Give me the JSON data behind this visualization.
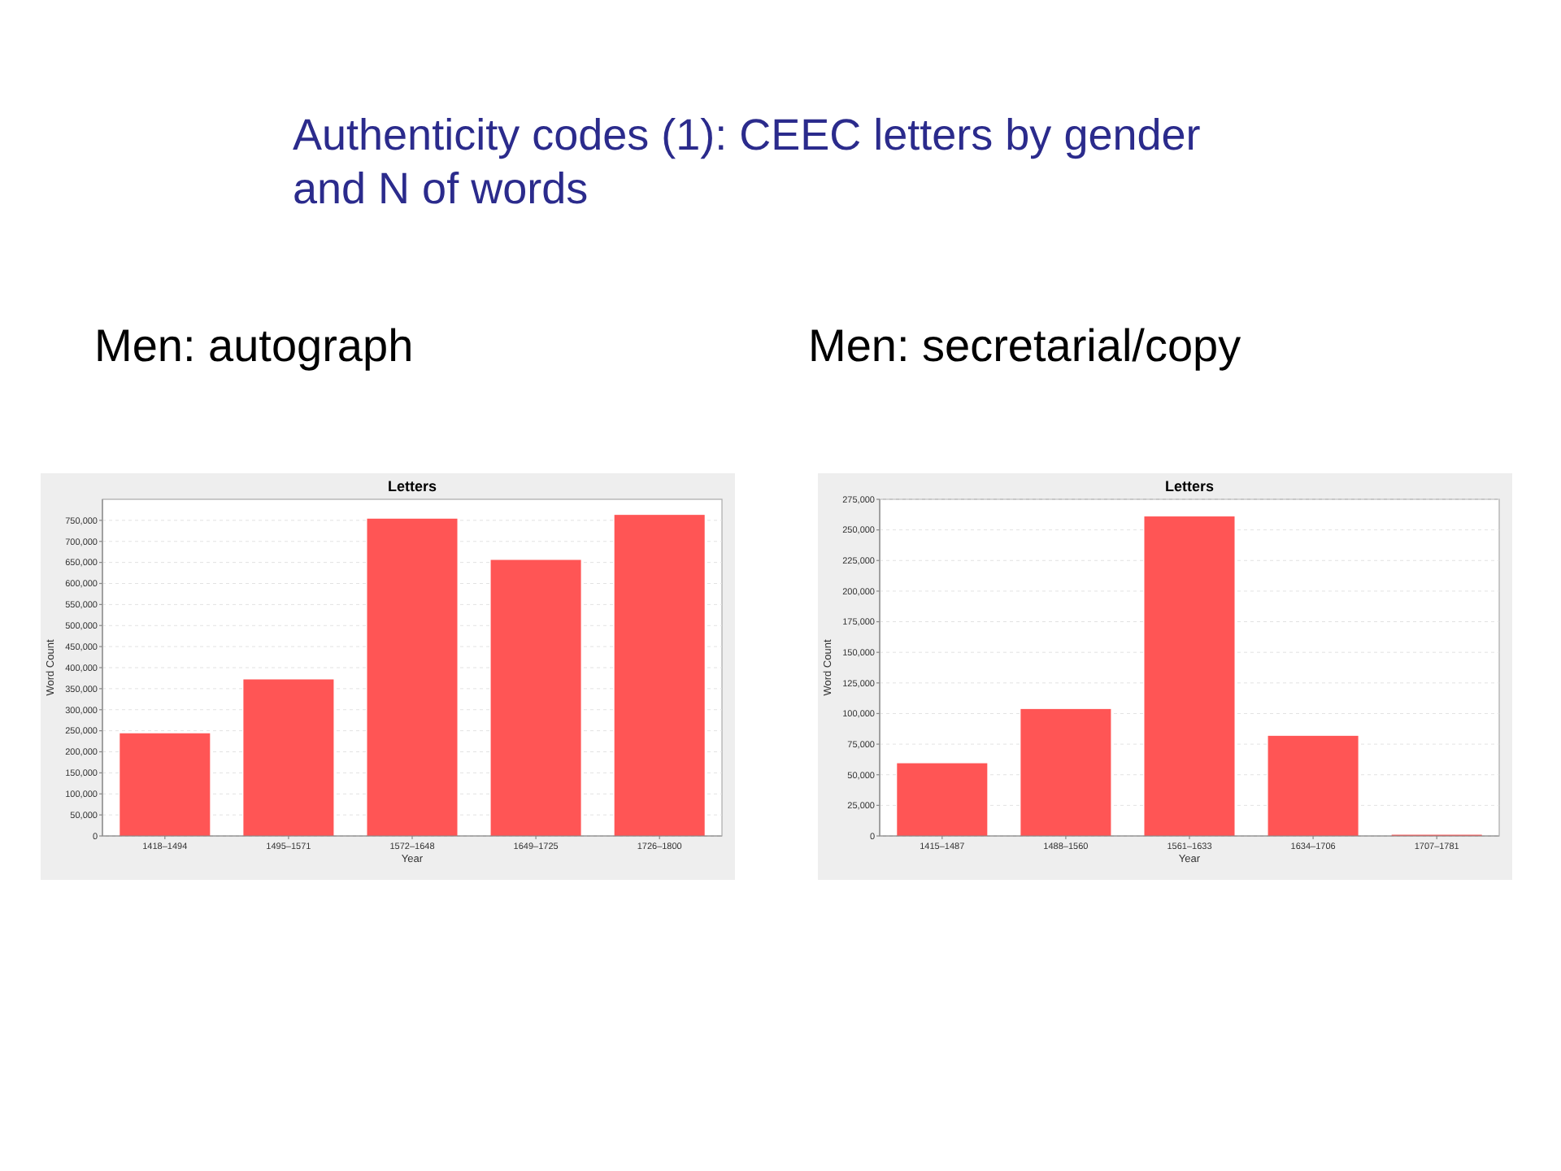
{
  "chart_data": [
    {
      "type": "other",
      "title": "Authenticity codes (1): CEEC letters by gender and N of words"
    },
    {
      "type": "bar",
      "subtitle": "Men: autograph",
      "title": "Letters",
      "xlabel": "Year",
      "ylabel": "Word Count",
      "categories": [
        "1418–1494",
        "1495–1571",
        "1572–1648",
        "1649–1725",
        "1726–1800"
      ],
      "values": [
        244000,
        372000,
        754000,
        656000,
        763000
      ],
      "color": "#ff5555",
      "ylim": [
        0,
        800000
      ],
      "yticks": [
        {
          "value": 0,
          "label": "0"
        },
        {
          "value": 50000,
          "label": "50,000"
        },
        {
          "value": 100000,
          "label": "100,000"
        },
        {
          "value": 150000,
          "label": "150,000"
        },
        {
          "value": 200000,
          "label": "200,000"
        },
        {
          "value": 250000,
          "label": "250,000"
        },
        {
          "value": 300000,
          "label": "300,000"
        },
        {
          "value": 350000,
          "label": "350,000"
        },
        {
          "value": 400000,
          "label": "400,000"
        },
        {
          "value": 450000,
          "label": "450,000"
        },
        {
          "value": 500000,
          "label": "500,000"
        },
        {
          "value": 550000,
          "label": "550,000"
        },
        {
          "value": 600000,
          "label": "600,000"
        },
        {
          "value": 650000,
          "label": "650,000"
        },
        {
          "value": 700000,
          "label": "700,000"
        },
        {
          "value": 750000,
          "label": "750,000"
        }
      ],
      "grid": "y"
    },
    {
      "type": "bar",
      "subtitle": "Men: secretarial/copy",
      "title": "Letters",
      "xlabel": "Year",
      "ylabel": "Word Count",
      "categories": [
        "1415–1487",
        "1488–1560",
        "1561–1633",
        "1634–1706",
        "1707–1781"
      ],
      "values": [
        59400,
        103700,
        261000,
        81800,
        1000
      ],
      "color": "#ff5555",
      "ylim": [
        0,
        275000
      ],
      "yticks": [
        {
          "value": 0,
          "label": "0"
        },
        {
          "value": 25000,
          "label": "25,000"
        },
        {
          "value": 50000,
          "label": "50,000"
        },
        {
          "value": 75000,
          "label": "75,000"
        },
        {
          "value": 100000,
          "label": "100,000"
        },
        {
          "value": 125000,
          "label": "125,000"
        },
        {
          "value": 150000,
          "label": "150,000"
        },
        {
          "value": 175000,
          "label": "175,000"
        },
        {
          "value": 200000,
          "label": "200,000"
        },
        {
          "value": 225000,
          "label": "225,000"
        },
        {
          "value": 250000,
          "label": "250,000"
        },
        {
          "value": 275000,
          "label": "275,000"
        }
      ],
      "grid": "y"
    }
  ]
}
